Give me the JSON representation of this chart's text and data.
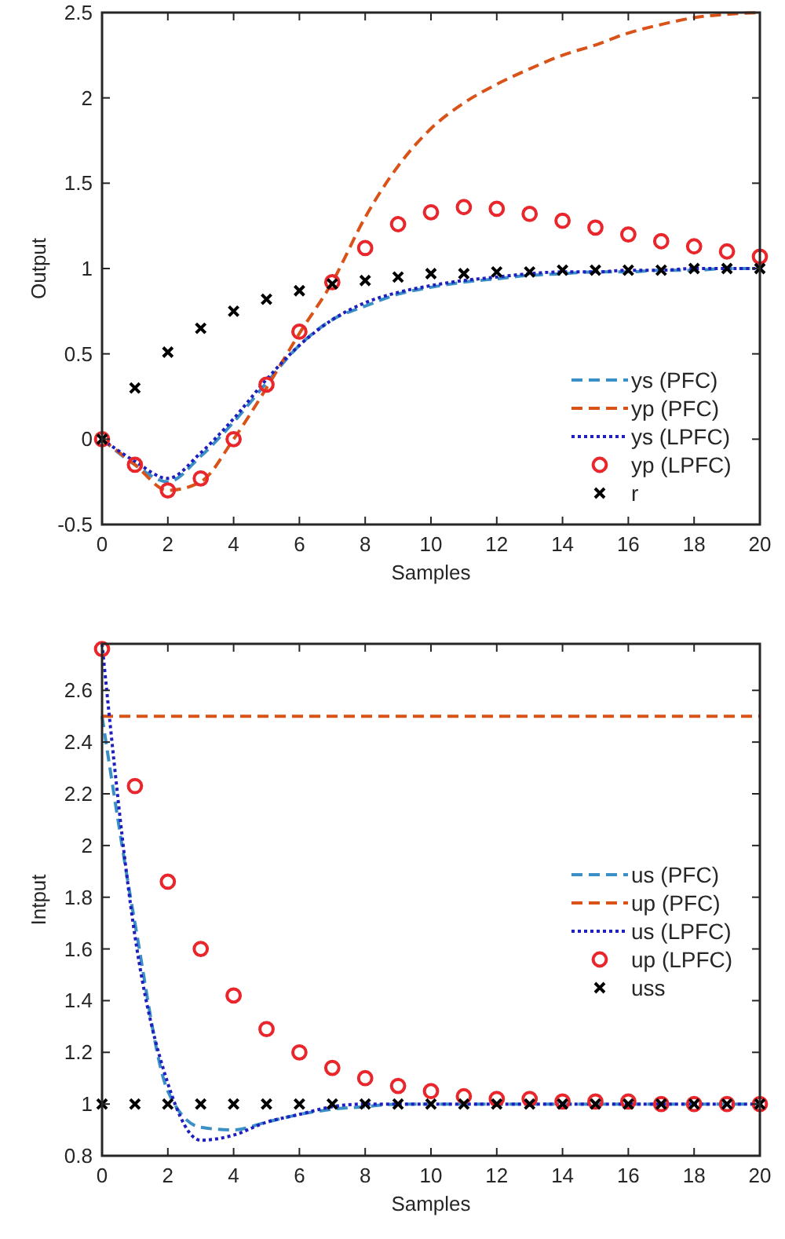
{
  "chart_data": [
    {
      "type": "line",
      "xlabel": "Samples",
      "ylabel": "Output",
      "x": [
        0,
        1,
        2,
        3,
        4,
        5,
        6,
        7,
        8,
        9,
        10,
        11,
        12,
        13,
        14,
        15,
        16,
        17,
        18,
        19,
        20
      ],
      "xlim": [
        0,
        20
      ],
      "xticks": [
        0,
        2,
        4,
        6,
        8,
        10,
        12,
        14,
        16,
        18,
        20
      ],
      "ylim": [
        -0.5,
        2.5
      ],
      "yticks": [
        -0.5,
        0,
        0.5,
        1,
        1.5,
        2,
        2.5
      ],
      "legend": "bottom right",
      "grid": false,
      "series": [
        {
          "name": "ys (PFC)",
          "line_style": "dashed",
          "color": "#3a8fc7",
          "values": [
            0,
            -0.15,
            -0.25,
            -0.1,
            0.1,
            0.33,
            0.55,
            0.7,
            0.78,
            0.85,
            0.89,
            0.92,
            0.94,
            0.96,
            0.97,
            0.98,
            0.98,
            0.99,
            0.99,
            1,
            1
          ]
        },
        {
          "name": "yp (PFC)",
          "line_style": "dashed",
          "color": "#d95319",
          "values": [
            0,
            -0.15,
            -0.3,
            -0.25,
            0,
            0.3,
            0.62,
            0.92,
            1.3,
            1.6,
            1.82,
            1.97,
            2.08,
            2.17,
            2.25,
            2.31,
            2.38,
            2.43,
            2.47,
            2.49,
            2.5
          ]
        },
        {
          "name": "ys (LPFC)",
          "line_style": "dotted",
          "color": "#1f1fbf",
          "values": [
            0,
            -0.13,
            -0.23,
            -0.08,
            0.12,
            0.35,
            0.55,
            0.7,
            0.8,
            0.86,
            0.9,
            0.93,
            0.95,
            0.97,
            0.98,
            0.98,
            0.99,
            0.99,
            1,
            1,
            1
          ]
        },
        {
          "name": "yp (LPFC)",
          "type": "scatter",
          "marker": "circle",
          "color": "#e8262b",
          "values": [
            0,
            -0.15,
            -0.3,
            -0.23,
            0,
            0.32,
            0.63,
            0.92,
            1.12,
            1.26,
            1.33,
            1.36,
            1.35,
            1.32,
            1.28,
            1.24,
            1.2,
            1.16,
            1.13,
            1.1,
            1.07
          ]
        },
        {
          "name": "r",
          "type": "scatter",
          "marker": "cross",
          "color": "#000000",
          "values": [
            0,
            0.3,
            0.51,
            0.65,
            0.75,
            0.82,
            0.87,
            0.91,
            0.93,
            0.95,
            0.97,
            0.97,
            0.98,
            0.98,
            0.99,
            0.99,
            0.99,
            0.99,
            1,
            1,
            1
          ]
        }
      ]
    },
    {
      "type": "line",
      "xlabel": "Samples",
      "ylabel": "Intput",
      "x": [
        0,
        1,
        2,
        3,
        4,
        5,
        6,
        7,
        8,
        9,
        10,
        11,
        12,
        13,
        14,
        15,
        16,
        17,
        18,
        19,
        20
      ],
      "xlim": [
        0,
        20
      ],
      "xticks": [
        0,
        2,
        4,
        6,
        8,
        10,
        12,
        14,
        16,
        18,
        20
      ],
      "ylim": [
        0.8,
        2.78
      ],
      "yticks": [
        0.8,
        1,
        1.2,
        1.4,
        1.6,
        1.8,
        2,
        2.2,
        2.4,
        2.6
      ],
      "legend": "right",
      "grid": false,
      "series": [
        {
          "name": "us (PFC)",
          "line_style": "dashed",
          "color": "#3a8fc7",
          "values": [
            2.5,
            1.7,
            1.05,
            0.91,
            0.9,
            0.93,
            0.96,
            0.98,
            0.99,
            1,
            1,
            1,
            1,
            1,
            1,
            1,
            1,
            1,
            1,
            1,
            1
          ]
        },
        {
          "name": "up (PFC)",
          "line_style": "dashed",
          "color": "#d95319",
          "values": [
            2.5,
            2.5,
            2.5,
            2.5,
            2.5,
            2.5,
            2.5,
            2.5,
            2.5,
            2.5,
            2.5,
            2.5,
            2.5,
            2.5,
            2.5,
            2.5,
            2.5,
            2.5,
            2.5,
            2.5,
            2.5
          ]
        },
        {
          "name": "us (LPFC)",
          "line_style": "dotted",
          "color": "#1f1fbf",
          "values": [
            2.78,
            1.65,
            1.08,
            0.86,
            0.88,
            0.93,
            0.96,
            0.99,
            1,
            1,
            1,
            1,
            1,
            1,
            1,
            1,
            1,
            1,
            1,
            1,
            1
          ]
        },
        {
          "name": "up (LPFC)",
          "type": "scatter",
          "marker": "circle",
          "color": "#e8262b",
          "values": [
            2.76,
            2.23,
            1.86,
            1.6,
            1.42,
            1.29,
            1.2,
            1.14,
            1.1,
            1.07,
            1.05,
            1.03,
            1.02,
            1.02,
            1.01,
            1.01,
            1.01,
            1,
            1,
            1,
            1
          ]
        },
        {
          "name": "uss",
          "type": "scatter",
          "marker": "cross",
          "color": "#000000",
          "values": [
            1,
            1,
            1,
            1,
            1,
            1,
            1,
            1,
            1,
            1,
            1,
            1,
            1,
            1,
            1,
            1,
            1,
            1,
            1,
            1,
            1
          ]
        }
      ]
    }
  ]
}
